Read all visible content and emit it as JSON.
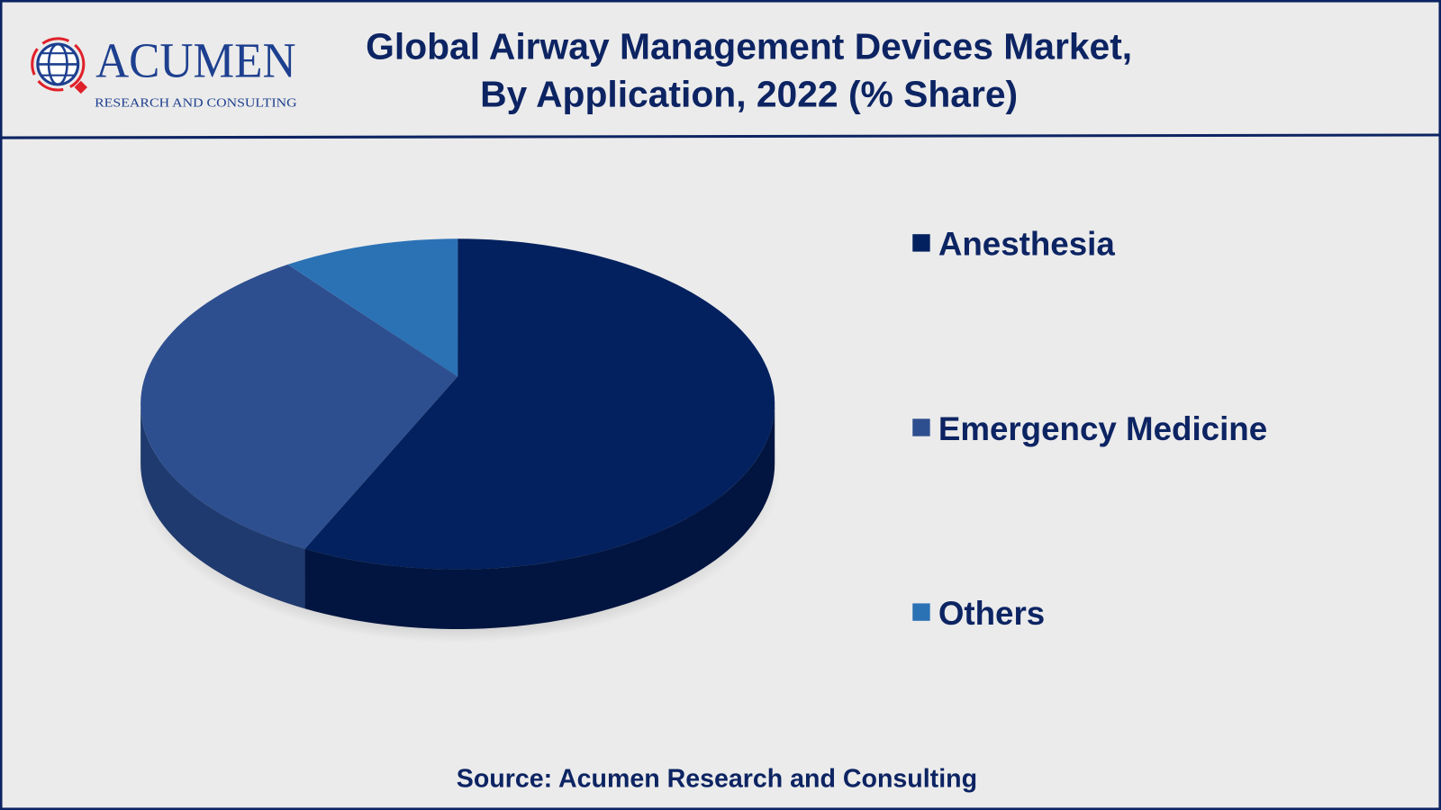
{
  "header": {
    "logo": {
      "name": "ACUMEN",
      "tagline": "RESEARCH AND CONSULTING"
    },
    "title_line1": "Global Airway Management Devices Market,",
    "title_line2": "By Application, 2022 (% Share)"
  },
  "footer": {
    "source": "Source: Acumen Research and Consulting"
  },
  "colors": {
    "border": "#0d2463",
    "background": "#ebebeb"
  },
  "chart_data": {
    "type": "pie",
    "title": "Global Airway Management Devices Market, By Application, 2022 (% Share)",
    "categories": [
      "Anesthesia",
      "Emergency Medicine",
      "Others"
    ],
    "values": [
      58,
      33,
      9
    ],
    "colors": [
      "#03215e",
      "#2e4f8f",
      "#2b72b5"
    ],
    "side_colors": [
      "#021540",
      "#1f3a6e",
      "#1f5a94"
    ],
    "legend": "right",
    "style": "3d"
  }
}
